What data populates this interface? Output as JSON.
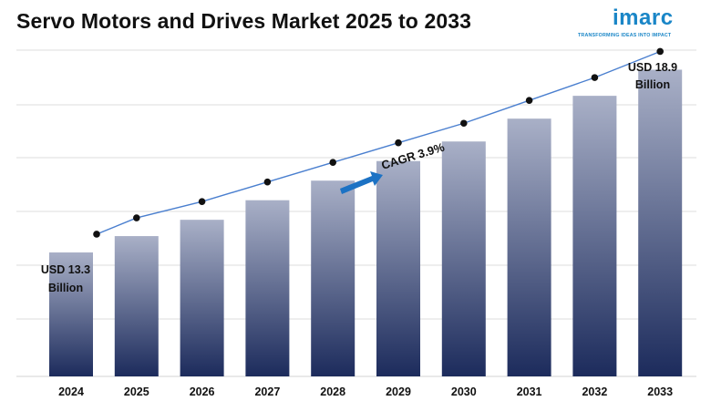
{
  "brand": {
    "name": "imarc",
    "tagline": "TRANSFORMING IDEAS INTO IMPACT",
    "color": "#1a86c7"
  },
  "chart_data": {
    "type": "bar",
    "title": "Servo Motors and Drives Market 2025 to 2033",
    "xlabel": "",
    "ylabel": "",
    "categories": [
      "2024",
      "2025",
      "2026",
      "2027",
      "2028",
      "2029",
      "2030",
      "2031",
      "2032",
      "2033"
    ],
    "series": [
      {
        "values": [
          13.3,
          13.8,
          14.3,
          14.9,
          15.5,
          16.1,
          16.7,
          17.4,
          18.1,
          18.9
        ]
      }
    ],
    "trend_line": true,
    "ylim": [
      9.5,
      19.5
    ],
    "grid": true,
    "annotations": {
      "start_label": "USD 13.3 Billion",
      "start_line1": "USD 13.3",
      "start_line2": "Billion",
      "end_label": "USD 18.9 Billion",
      "end_line1": "USD 18.9",
      "end_line2": "Billion",
      "cagr": "CAGR 3.9%"
    },
    "colors": {
      "bar_top": "#a9b0c7",
      "bar_bottom": "#1c2b5c",
      "line": "#4a7fcf",
      "marker": "#111111",
      "arrow": "#1c72c4",
      "grid": "#dcdcdc"
    }
  }
}
